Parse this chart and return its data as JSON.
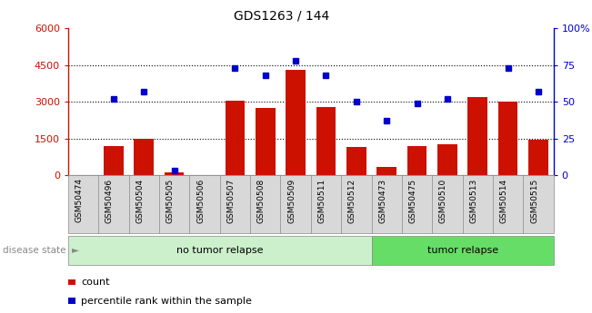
{
  "title": "GDS1263 / 144",
  "samples": [
    "GSM50474",
    "GSM50496",
    "GSM50504",
    "GSM50505",
    "GSM50506",
    "GSM50507",
    "GSM50508",
    "GSM50509",
    "GSM50511",
    "GSM50512",
    "GSM50473",
    "GSM50475",
    "GSM50510",
    "GSM50513",
    "GSM50514",
    "GSM50515"
  ],
  "counts": [
    0,
    1200,
    1500,
    130,
    0,
    3050,
    2750,
    4300,
    2800,
    1150,
    350,
    1200,
    1250,
    3200,
    3000,
    1450
  ],
  "percentiles": [
    null,
    52,
    57,
    3,
    null,
    73,
    68,
    78,
    68,
    50,
    37,
    49,
    52,
    null,
    73,
    57
  ],
  "ylim_left": [
    0,
    6000
  ],
  "ylim_right": [
    0,
    100
  ],
  "yticks_left": [
    0,
    1500,
    3000,
    4500,
    6000
  ],
  "ytick_labels_left": [
    "0",
    "1500",
    "3000",
    "4500",
    "6000"
  ],
  "yticks_right": [
    0,
    25,
    50,
    75,
    100
  ],
  "ytick_labels_right": [
    "0",
    "25",
    "50",
    "75",
    "100%"
  ],
  "bar_color": "#cc1100",
  "dot_color": "#0000cc",
  "no_tumor_count": 10,
  "tumor_count": 6,
  "no_tumor_label": "no tumor relapse",
  "tumor_label": "tumor relapse",
  "disease_state_label": "disease state",
  "legend_bar_label": "count",
  "legend_dot_label": "percentile rank within the sample",
  "xtick_bg_color": "#d8d8d8",
  "no_tumor_color": "#ccf0cc",
  "tumor_color": "#66dd66",
  "plot_bg": "#ffffff"
}
